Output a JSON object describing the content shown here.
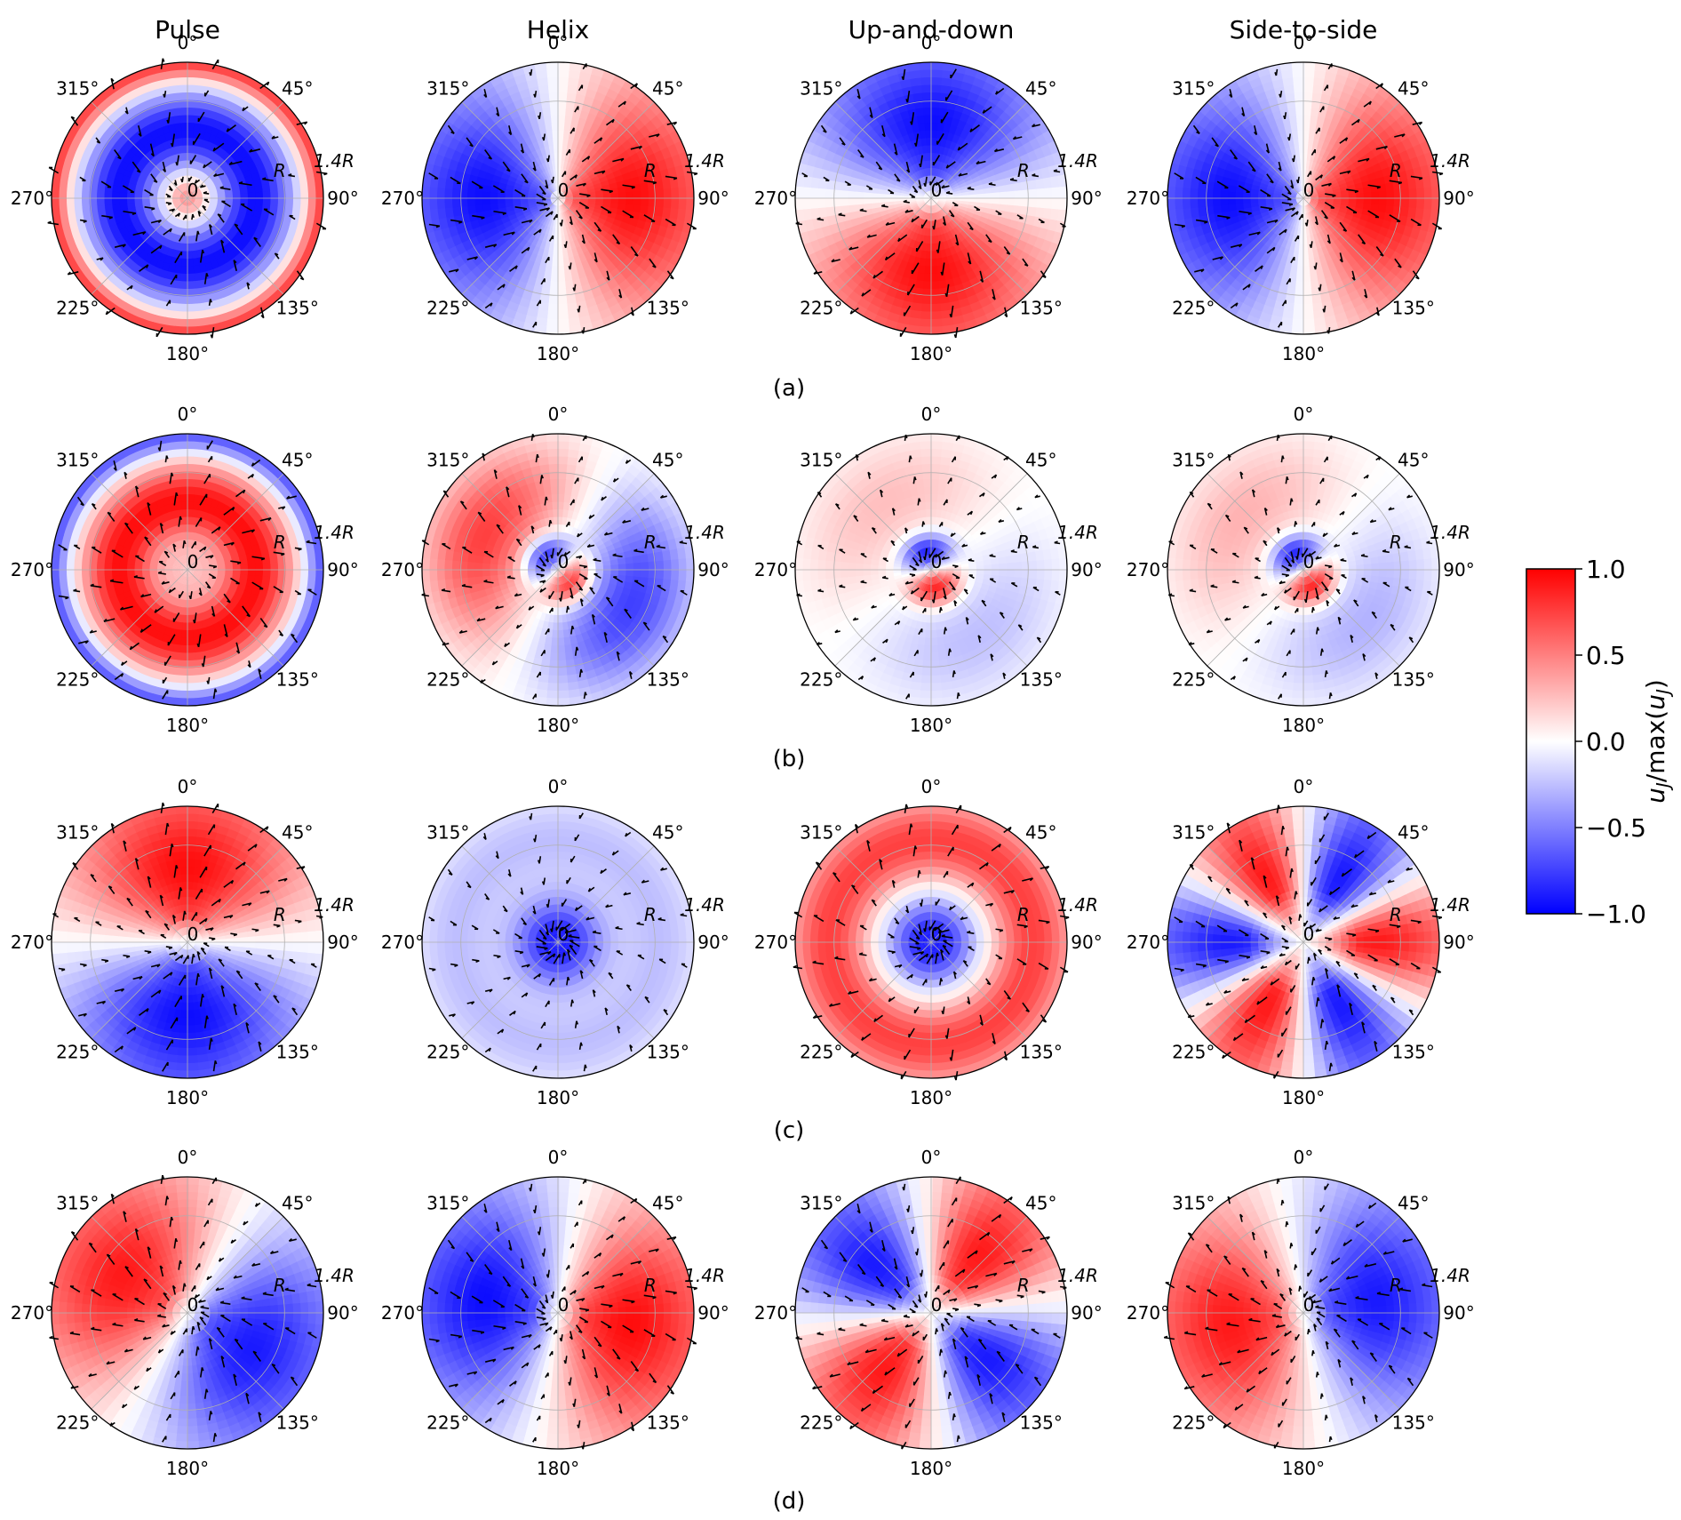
{
  "chart_data": {
    "type": "polar-heatmap",
    "column_titles": [
      "Pulse",
      "Helix",
      "Up-and-down",
      "Side-to-side"
    ],
    "row_labels": [
      "(a)",
      "(b)",
      "(c)",
      "(d)"
    ],
    "theta_tick_labels": [
      "0°",
      "45°",
      "90°",
      "135°",
      "180°",
      "225°",
      "270°",
      "315°"
    ],
    "radial_tick_labels": [
      "0",
      "R",
      "1.4R"
    ],
    "colorbar": {
      "label": "u_J / max(u_J)",
      "label_parts": [
        "u",
        "J",
        "/max(",
        "u",
        "J",
        ")"
      ],
      "ticks": [
        "1.0",
        "0.5",
        "0.0",
        "−0.5",
        "−1.0"
      ],
      "tick_values": [
        1.0,
        0.5,
        0.0,
        -0.5,
        -1.0
      ],
      "range": [
        -1.0,
        1.0
      ],
      "colors": [
        "#0000ff",
        "#ffffff",
        "#ff0000"
      ]
    },
    "panels": [
      {
        "row": 0,
        "col": 0,
        "pattern": "rings",
        "field": [
          0.8,
          -0.95,
          0.5,
          0.0,
          0.0
        ]
      },
      {
        "row": 0,
        "col": 1,
        "pattern": "lobes",
        "field": [
          0.0,
          0.95,
          0.1,
          1.0,
          90
        ]
      },
      {
        "row": 0,
        "col": 2,
        "pattern": "lobes",
        "field": [
          0.0,
          0.95,
          0.2,
          1.0,
          180
        ]
      },
      {
        "row": 0,
        "col": 3,
        "pattern": "lobes",
        "field": [
          0.0,
          0.95,
          0.1,
          1.0,
          90
        ]
      },
      {
        "row": 1,
        "col": 0,
        "pattern": "rings",
        "field": [
          -0.7,
          0.95,
          0.2,
          0.0,
          0.0
        ]
      },
      {
        "row": 1,
        "col": 1,
        "pattern": "core-lobes",
        "field": [
          0.9,
          0.75,
          135,
          0.5,
          0.0
        ]
      },
      {
        "row": 1,
        "col": 2,
        "pattern": "core-lobes",
        "field": [
          0.9,
          0.25,
          165,
          0.5,
          0.0
        ]
      },
      {
        "row": 1,
        "col": 3,
        "pattern": "core-lobes",
        "field": [
          0.9,
          0.3,
          150,
          0.5,
          0.0
        ]
      },
      {
        "row": 2,
        "col": 0,
        "pattern": "lobes",
        "field": [
          0.0,
          0.95,
          0.2,
          1.0,
          0
        ]
      },
      {
        "row": 2,
        "col": 1,
        "pattern": "center",
        "field": [
          -0.95,
          -0.25,
          0.45,
          0.0,
          0.0
        ]
      },
      {
        "row": 2,
        "col": 2,
        "pattern": "center",
        "field": [
          -0.95,
          0.75,
          0.45,
          0.0,
          0.0
        ]
      },
      {
        "row": 2,
        "col": 3,
        "pattern": "lobes",
        "field": [
          0.0,
          0.9,
          0.4,
          3.0,
          330
        ]
      },
      {
        "row": 3,
        "col": 0,
        "pattern": "lobes",
        "field": [
          0.0,
          0.9,
          0.2,
          1.0,
          300
        ]
      },
      {
        "row": 3,
        "col": 1,
        "pattern": "lobes",
        "field": [
          0.0,
          0.95,
          0.2,
          1.0,
          100
        ]
      },
      {
        "row": 3,
        "col": 2,
        "pattern": "lobes",
        "field": [
          0.0,
          0.9,
          0.3,
          2.0,
          40
        ]
      },
      {
        "row": 3,
        "col": 3,
        "pattern": "lobes",
        "field": [
          0.0,
          0.9,
          0.2,
          1.0,
          260
        ]
      }
    ]
  }
}
